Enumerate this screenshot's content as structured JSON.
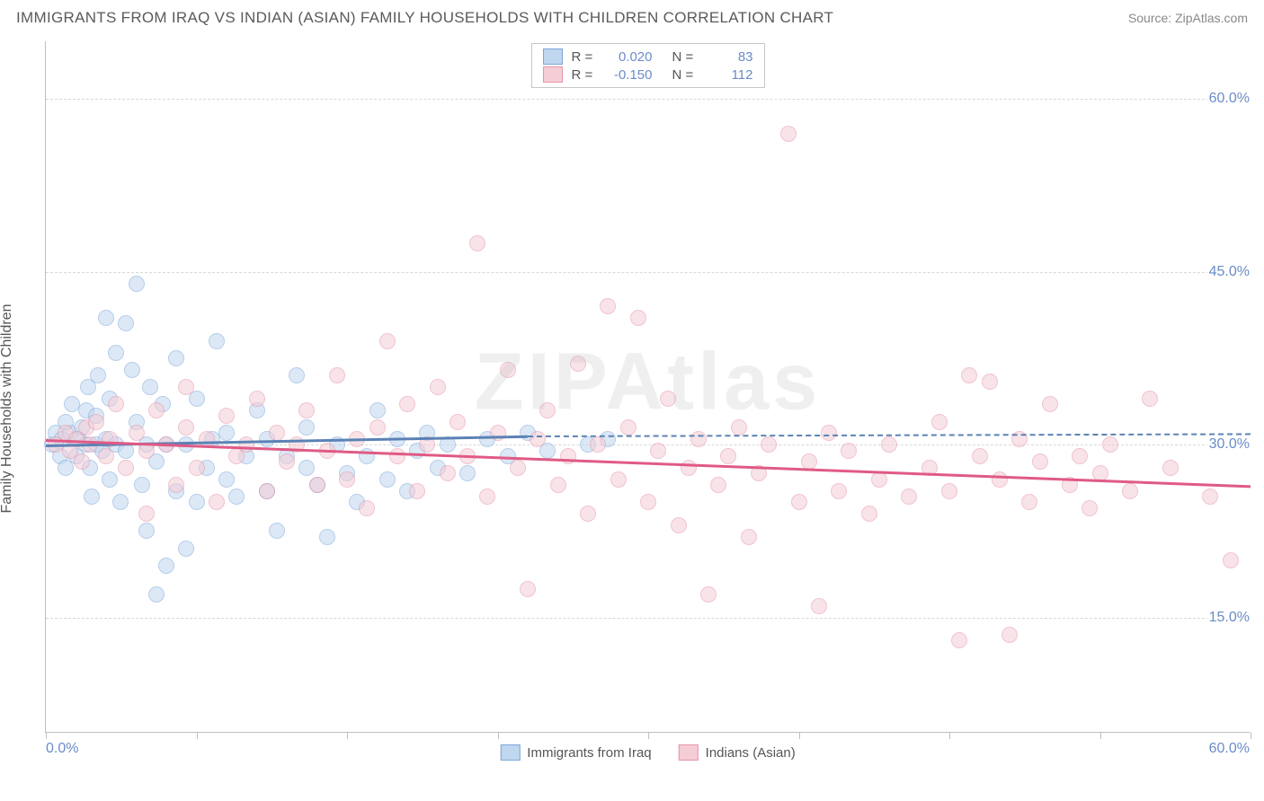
{
  "title": "IMMIGRANTS FROM IRAQ VS INDIAN (ASIAN) FAMILY HOUSEHOLDS WITH CHILDREN CORRELATION CHART",
  "source": "Source: ZipAtlas.com",
  "watermark": "ZIPAtlas",
  "yaxis_title": "Family Households with Children",
  "chart": {
    "type": "scatter",
    "xlim": [
      0,
      60
    ],
    "ylim": [
      5,
      65
    ],
    "yticks": [
      {
        "v": 15,
        "label": "15.0%"
      },
      {
        "v": 30,
        "label": "30.0%"
      },
      {
        "v": 45,
        "label": "45.0%"
      },
      {
        "v": 60,
        "label": "60.0%"
      }
    ],
    "xticks": [
      0,
      7.5,
      15,
      22.5,
      30,
      37.5,
      45,
      52.5,
      60
    ],
    "xaxis_min_label": "0.0%",
    "xaxis_max_label": "60.0%",
    "grid_color": "#d8d8d8",
    "axis_color": "#bfbfbf",
    "background_color": "#ffffff"
  },
  "series": [
    {
      "name": "Immigrants from Iraq",
      "fill": "#c1d6ef",
      "stroke": "#7ba7d9",
      "r_label": "R =",
      "r_value": "0.020",
      "n_label": "N =",
      "n_value": "83",
      "trend": {
        "x1": 0,
        "y1": 30.0,
        "x2": 24,
        "y2": 30.8,
        "dash_to_x": 60,
        "dash_to_y": 31.0,
        "color": "#5b82b5"
      },
      "points": [
        [
          0.3,
          30
        ],
        [
          0.5,
          31
        ],
        [
          0.7,
          29
        ],
        [
          0.8,
          30.5
        ],
        [
          1,
          28
        ],
        [
          1.2,
          31
        ],
        [
          1,
          32
        ],
        [
          1.3,
          33.5
        ],
        [
          1.5,
          29
        ],
        [
          1.6,
          30.5
        ],
        [
          1.8,
          31.5
        ],
        [
          2,
          30
        ],
        [
          2,
          33
        ],
        [
          2.1,
          35
        ],
        [
          2.2,
          28
        ],
        [
          2.3,
          25.5
        ],
        [
          2.5,
          30
        ],
        [
          2.5,
          32.5
        ],
        [
          2.6,
          36
        ],
        [
          2.8,
          29.5
        ],
        [
          3,
          41
        ],
        [
          3,
          30.5
        ],
        [
          3.2,
          27
        ],
        [
          3.2,
          34
        ],
        [
          3.5,
          38
        ],
        [
          3.5,
          30
        ],
        [
          3.7,
          25
        ],
        [
          4,
          40.5
        ],
        [
          4,
          29.5
        ],
        [
          4.3,
          36.5
        ],
        [
          4.5,
          44
        ],
        [
          4.5,
          32
        ],
        [
          4.8,
          26.5
        ],
        [
          5,
          22.5
        ],
        [
          5,
          30
        ],
        [
          5.2,
          35
        ],
        [
          5.5,
          17
        ],
        [
          5.5,
          28.5
        ],
        [
          5.8,
          33.5
        ],
        [
          6,
          19.5
        ],
        [
          6,
          30
        ],
        [
          6.5,
          37.5
        ],
        [
          6.5,
          26
        ],
        [
          7,
          21
        ],
        [
          7,
          30
        ],
        [
          7.5,
          25
        ],
        [
          7.5,
          34
        ],
        [
          8,
          28
        ],
        [
          8.3,
          30.5
        ],
        [
          8.5,
          39
        ],
        [
          9,
          27
        ],
        [
          9,
          31
        ],
        [
          9.5,
          25.5
        ],
        [
          10,
          29
        ],
        [
          10.5,
          33
        ],
        [
          11,
          26
        ],
        [
          11,
          30.5
        ],
        [
          11.5,
          22.5
        ],
        [
          12,
          29
        ],
        [
          12.5,
          36
        ],
        [
          13,
          28
        ],
        [
          13,
          31.5
        ],
        [
          13.5,
          26.5
        ],
        [
          14,
          22
        ],
        [
          14.5,
          30
        ],
        [
          15,
          27.5
        ],
        [
          15.5,
          25
        ],
        [
          16,
          29
        ],
        [
          16.5,
          33
        ],
        [
          17,
          27
        ],
        [
          17.5,
          30.5
        ],
        [
          18,
          26
        ],
        [
          18.5,
          29.5
        ],
        [
          19,
          31
        ],
        [
          19.5,
          28
        ],
        [
          20,
          30
        ],
        [
          21,
          27.5
        ],
        [
          22,
          30.5
        ],
        [
          23,
          29
        ],
        [
          24,
          31
        ],
        [
          25,
          29.5
        ],
        [
          27,
          30
        ],
        [
          28,
          30.5
        ]
      ]
    },
    {
      "name": "Indians (Asian)",
      "fill": "#f4cdd7",
      "stroke": "#e793a9",
      "r_label": "R =",
      "r_value": "-0.150",
      "n_label": "N =",
      "n_value": "112",
      "trend": {
        "x1": 0,
        "y1": 30.5,
        "x2": 60,
        "y2": 26.5,
        "color": "#e05a85"
      },
      "points": [
        [
          0.5,
          30
        ],
        [
          1,
          31
        ],
        [
          1.2,
          29.5
        ],
        [
          1.5,
          30.5
        ],
        [
          1.8,
          28.5
        ],
        [
          2,
          31.5
        ],
        [
          2.2,
          30
        ],
        [
          2.5,
          32
        ],
        [
          3,
          29
        ],
        [
          3.2,
          30.5
        ],
        [
          3.5,
          33.5
        ],
        [
          4,
          28
        ],
        [
          4.5,
          31
        ],
        [
          5,
          24
        ],
        [
          5,
          29.5
        ],
        [
          5.5,
          33
        ],
        [
          6,
          30
        ],
        [
          6.5,
          26.5
        ],
        [
          7,
          31.5
        ],
        [
          7,
          35
        ],
        [
          7.5,
          28
        ],
        [
          8,
          30.5
        ],
        [
          8.5,
          25
        ],
        [
          9,
          32.5
        ],
        [
          9.5,
          29
        ],
        [
          10,
          30
        ],
        [
          10.5,
          34
        ],
        [
          11,
          26
        ],
        [
          11.5,
          31
        ],
        [
          12,
          28.5
        ],
        [
          12.5,
          30
        ],
        [
          13,
          33
        ],
        [
          13.5,
          26.5
        ],
        [
          14,
          29.5
        ],
        [
          14.5,
          36
        ],
        [
          15,
          27
        ],
        [
          15.5,
          30.5
        ],
        [
          16,
          24.5
        ],
        [
          16.5,
          31.5
        ],
        [
          17,
          39
        ],
        [
          17.5,
          29
        ],
        [
          18,
          33.5
        ],
        [
          18.5,
          26
        ],
        [
          19,
          30
        ],
        [
          19.5,
          35
        ],
        [
          20,
          27.5
        ],
        [
          20.5,
          32
        ],
        [
          21,
          29
        ],
        [
          21.5,
          47.5
        ],
        [
          22,
          25.5
        ],
        [
          22.5,
          31
        ],
        [
          23,
          36.5
        ],
        [
          23.5,
          28
        ],
        [
          24,
          17.5
        ],
        [
          24.5,
          30.5
        ],
        [
          25,
          33
        ],
        [
          25.5,
          26.5
        ],
        [
          26,
          29
        ],
        [
          26.5,
          37
        ],
        [
          27,
          24
        ],
        [
          27.5,
          30
        ],
        [
          28,
          42
        ],
        [
          28.5,
          27
        ],
        [
          29,
          31.5
        ],
        [
          29.5,
          41
        ],
        [
          30,
          25
        ],
        [
          30.5,
          29.5
        ],
        [
          31,
          34
        ],
        [
          31.5,
          23
        ],
        [
          32,
          28
        ],
        [
          32.5,
          30.5
        ],
        [
          33,
          17
        ],
        [
          33.5,
          26.5
        ],
        [
          34,
          29
        ],
        [
          34.5,
          31.5
        ],
        [
          35,
          22
        ],
        [
          35.5,
          27.5
        ],
        [
          36,
          30
        ],
        [
          37,
          57
        ],
        [
          37.5,
          25
        ],
        [
          38,
          28.5
        ],
        [
          38.5,
          16
        ],
        [
          39,
          31
        ],
        [
          39.5,
          26
        ],
        [
          40,
          29.5
        ],
        [
          41,
          24
        ],
        [
          41.5,
          27
        ],
        [
          42,
          30
        ],
        [
          43,
          25.5
        ],
        [
          44,
          28
        ],
        [
          44.5,
          32
        ],
        [
          45,
          26
        ],
        [
          45.5,
          13
        ],
        [
          46,
          36
        ],
        [
          46.5,
          29
        ],
        [
          47,
          35.5
        ],
        [
          47.5,
          27
        ],
        [
          48,
          13.5
        ],
        [
          48.5,
          30.5
        ],
        [
          49,
          25
        ],
        [
          49.5,
          28.5
        ],
        [
          50,
          33.5
        ],
        [
          51,
          26.5
        ],
        [
          51.5,
          29
        ],
        [
          52,
          24.5
        ],
        [
          52.5,
          27.5
        ],
        [
          53,
          30
        ],
        [
          54,
          26
        ],
        [
          55,
          34
        ],
        [
          56,
          28
        ],
        [
          58,
          25.5
        ],
        [
          59,
          20
        ]
      ]
    }
  ]
}
